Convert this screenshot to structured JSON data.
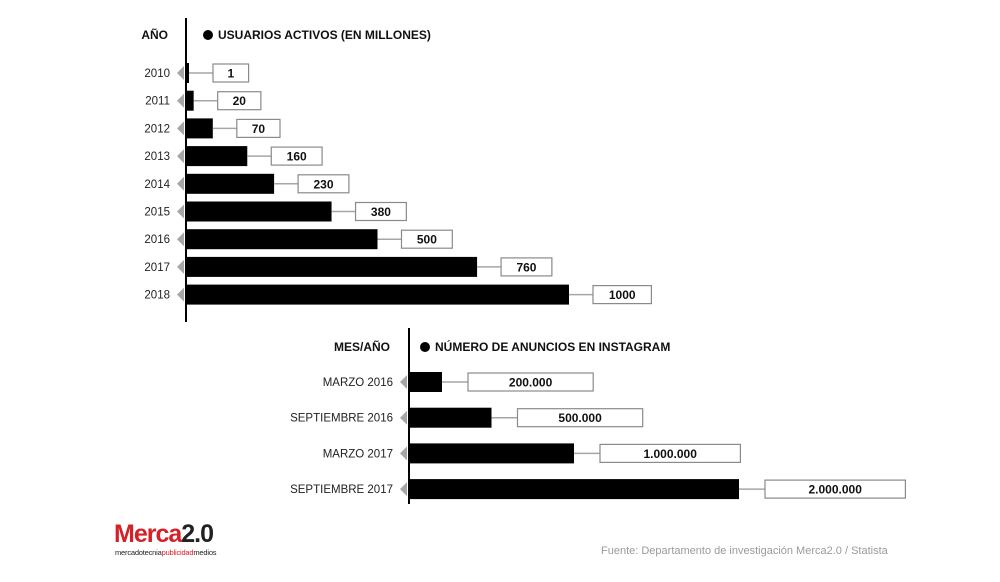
{
  "chart_data": [
    {
      "type": "bar",
      "orientation": "horizontal",
      "category_header": "AÑO",
      "series_label": "USUARIOS ACTIVOS (EN MILLONES)",
      "categories": [
        "2010",
        "2011",
        "2012",
        "2013",
        "2014",
        "2015",
        "2016",
        "2017",
        "2018"
      ],
      "values": [
        1,
        20,
        70,
        160,
        230,
        380,
        500,
        760,
        1000
      ],
      "value_labels": [
        "1",
        "20",
        "70",
        "160",
        "230",
        "380",
        "500",
        "760",
        "1000"
      ],
      "xlim": [
        0,
        1000
      ]
    },
    {
      "type": "bar",
      "orientation": "horizontal",
      "category_header": "MES/AÑO",
      "series_label": "NÚMERO DE ANUNCIOS EN INSTAGRAM",
      "categories": [
        "MARZO 2016",
        "SEPTIEMBRE 2016",
        "MARZO 2017",
        "SEPTIEMBRE 2017"
      ],
      "values": [
        200000,
        500000,
        1000000,
        2000000
      ],
      "value_labels": [
        "200.000",
        "500.000",
        "1.000.000",
        "2.000.000"
      ],
      "xlim": [
        0,
        2000000
      ]
    }
  ],
  "colors": {
    "bar": "#000000",
    "arrow": "#a6a6a6",
    "connector": "#a6a6a6",
    "label_border": "#8a8a8a",
    "brand_red": "#d42027"
  },
  "logo": {
    "main": "Merca",
    "suffix": "2.0",
    "tag_a": "mercadotecnia",
    "tag_b": "publicidad",
    "tag_c": "medios"
  },
  "source": "Fuente: Departamento de investigación Merca2.0 / Statista"
}
